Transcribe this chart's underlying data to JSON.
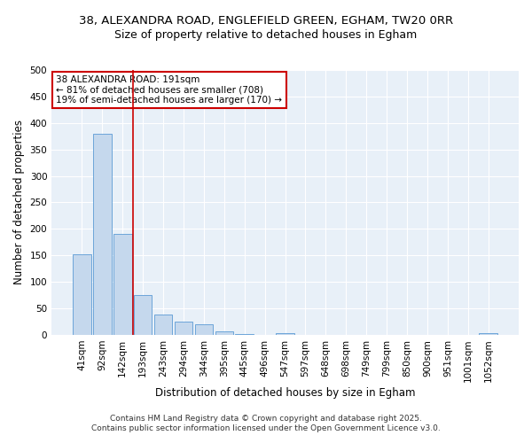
{
  "title1": "38, ALEXANDRA ROAD, ENGLEFIELD GREEN, EGHAM, TW20 0RR",
  "title2": "Size of property relative to detached houses in Egham",
  "xlabel": "Distribution of detached houses by size in Egham",
  "ylabel": "Number of detached properties",
  "categories": [
    "41sqm",
    "92sqm",
    "142sqm",
    "193sqm",
    "243sqm",
    "294sqm",
    "344sqm",
    "395sqm",
    "445sqm",
    "496sqm",
    "547sqm",
    "597sqm",
    "648sqm",
    "698sqm",
    "749sqm",
    "799sqm",
    "850sqm",
    "900sqm",
    "951sqm",
    "1001sqm",
    "1052sqm"
  ],
  "values": [
    152,
    380,
    191,
    76,
    39,
    25,
    20,
    6,
    2,
    0,
    3,
    0,
    0,
    0,
    0,
    0,
    0,
    0,
    0,
    0,
    4
  ],
  "bar_color": "#c5d8ed",
  "bar_edge_color": "#5b9bd5",
  "vline_x_index": 3,
  "vline_color": "#cc0000",
  "annotation_box_text": "38 ALEXANDRA ROAD: 191sqm\n← 81% of detached houses are smaller (708)\n19% of semi-detached houses are larger (170) →",
  "annotation_box_facecolor": "white",
  "annotation_box_edgecolor": "#cc0000",
  "background_color": "#e8f0f8",
  "grid_color": "white",
  "footer_text": "Contains HM Land Registry data © Crown copyright and database right 2025.\nContains public sector information licensed under the Open Government Licence v3.0.",
  "ylim": [
    0,
    500
  ],
  "yticks": [
    0,
    50,
    100,
    150,
    200,
    250,
    300,
    350,
    400,
    450,
    500
  ],
  "title_fontsize": 9.5,
  "subtitle_fontsize": 9,
  "axis_label_fontsize": 8.5,
  "tick_fontsize": 7.5,
  "annotation_fontsize": 7.5,
  "footer_fontsize": 6.5
}
